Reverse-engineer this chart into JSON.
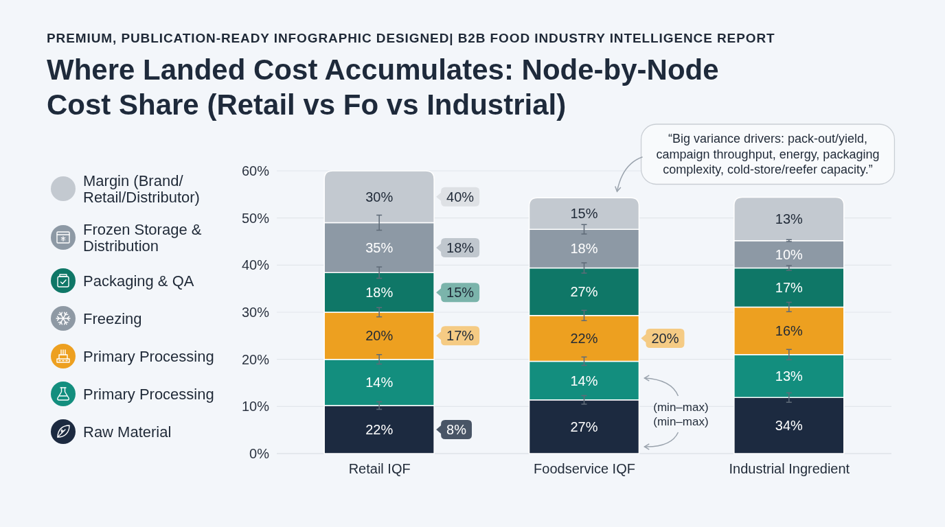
{
  "chart_data": {
    "type": "bar",
    "stacked": true,
    "subtitle": "PREMIUM, PUBLICATION-READY INFOGRAPHIC DESIGNED| B2B FOOD INDUSTRY INTELLIGENCE REPORT",
    "title": "Where Landed Cost Accumulates: Node-by-Node Cost Share (Retail vs Fo vs Industrial)",
    "categories": [
      "Retail IQF",
      "Foodservice IQF",
      "Industrial Ingredient"
    ],
    "series": [
      {
        "name": "Raw Material",
        "color": "#1c2a40",
        "values": [
          10.2,
          11.4,
          11.9
        ],
        "errors": [
          0.8,
          0.9,
          1.0
        ]
      },
      {
        "name": "Primary Processing",
        "color": "#138e7e",
        "values": [
          9.8,
          8.2,
          9.1
        ],
        "errors": [
          1.0,
          0.9,
          1.1
        ]
      },
      {
        "name": "Primary Processing",
        "color": "#eda020",
        "values": [
          10,
          9.7,
          10.1
        ],
        "errors": [
          1.0,
          1.1,
          1.0
        ]
      },
      {
        "name": "Freezing",
        "color": "#8e99a4",
        "values": [
          null,
          null,
          null
        ]
      },
      {
        "name": "Packaging & QA",
        "color": "#0f7767",
        "values": [
          8.4,
          10.1,
          8.3
        ],
        "errors": [
          1.2,
          1.1,
          0.5
        ]
      },
      {
        "name": "Frozen Storage & Distribution",
        "color": "#8d99a5",
        "values": [
          10.6,
          8.2,
          5.8
        ],
        "errors": [
          1.6,
          1.0,
          0.2
        ]
      },
      {
        "name": "Margin (Brand/Retail/Distributor)",
        "color": "#c3c9d0",
        "values": [
          11,
          6.7,
          9.2
        ]
      }
    ],
    "ylim": [
      0,
      60
    ],
    "yticks": [
      {
        "value": 0,
        "label": "0%"
      },
      {
        "value": 10,
        "label": "10%"
      },
      {
        "value": 20,
        "label": "20%"
      },
      {
        "value": 30,
        "label": "30%"
      },
      {
        "value": 40,
        "label": "40%"
      },
      {
        "value": 50,
        "label": "50%"
      },
      {
        "value": 60,
        "label": "60%"
      }
    ],
    "grid": "y",
    "legend": "left",
    "annotations": [
      "22%",
      "14%",
      "20%",
      "18%",
      "35%",
      "30%",
      "27%",
      "14%",
      "22%",
      "27%",
      "18%",
      "15%",
      "34%",
      "13%",
      "16%",
      "17%",
      "10%",
      "13%",
      "40%",
      "18%",
      "15%",
      "17%",
      "8%",
      "20%",
      "“Big variance drivers: pack-out/yield, campaign throughput, energy, packaging complexity, cold-store/reefer capacity.”",
      "(min–max)",
      "(min–max)"
    ]
  }
}
